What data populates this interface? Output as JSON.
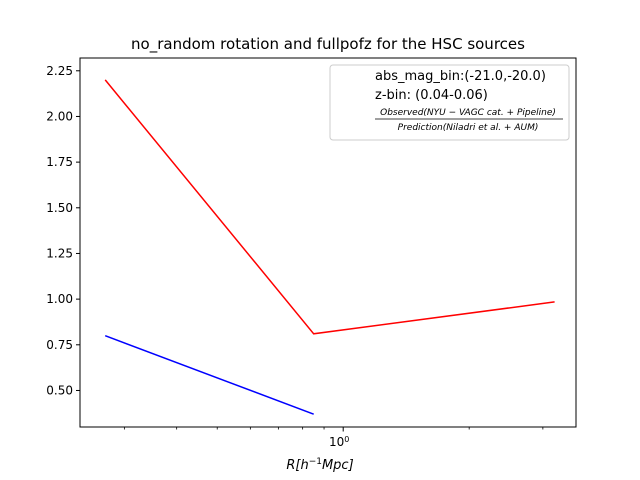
{
  "chart_data": {
    "type": "line",
    "title": "no_random rotation and fullpofz for the HSC sources",
    "xlabel": "R[h^{-1}Mpc]",
    "xscale": "log",
    "xlim": [
      0.235,
      3.6
    ],
    "ylim": [
      0.3,
      2.32
    ],
    "yticks": [
      0.5,
      0.75,
      1.0,
      1.25,
      1.5,
      1.75,
      2.0,
      2.25
    ],
    "ytick_labels": [
      "0.50",
      "0.75",
      "1.00",
      "1.25",
      "1.50",
      "1.75",
      "2.00",
      "2.25"
    ],
    "xtick_major": [
      1.0
    ],
    "xtick_major_label": "10^0",
    "grid": false,
    "series": [
      {
        "color": "#ff0000",
        "x": [
          0.27,
          0.85,
          3.2
        ],
        "y": [
          2.2,
          0.81,
          0.985
        ]
      },
      {
        "color": "#0000ff",
        "x": [
          0.27,
          0.85
        ],
        "y": [
          0.8,
          0.37
        ]
      }
    ],
    "legend": {
      "placement": "top-right",
      "lines": [
        "abs_mag_bin:(-21.0,-20.0)",
        "z-bin: (0.04-0.06)"
      ],
      "fraction_numerator": "Observed(NYU − VAGC cat. + Pipeline)",
      "fraction_denominator": "Prediction(Niladri et al. + AUM)"
    }
  }
}
